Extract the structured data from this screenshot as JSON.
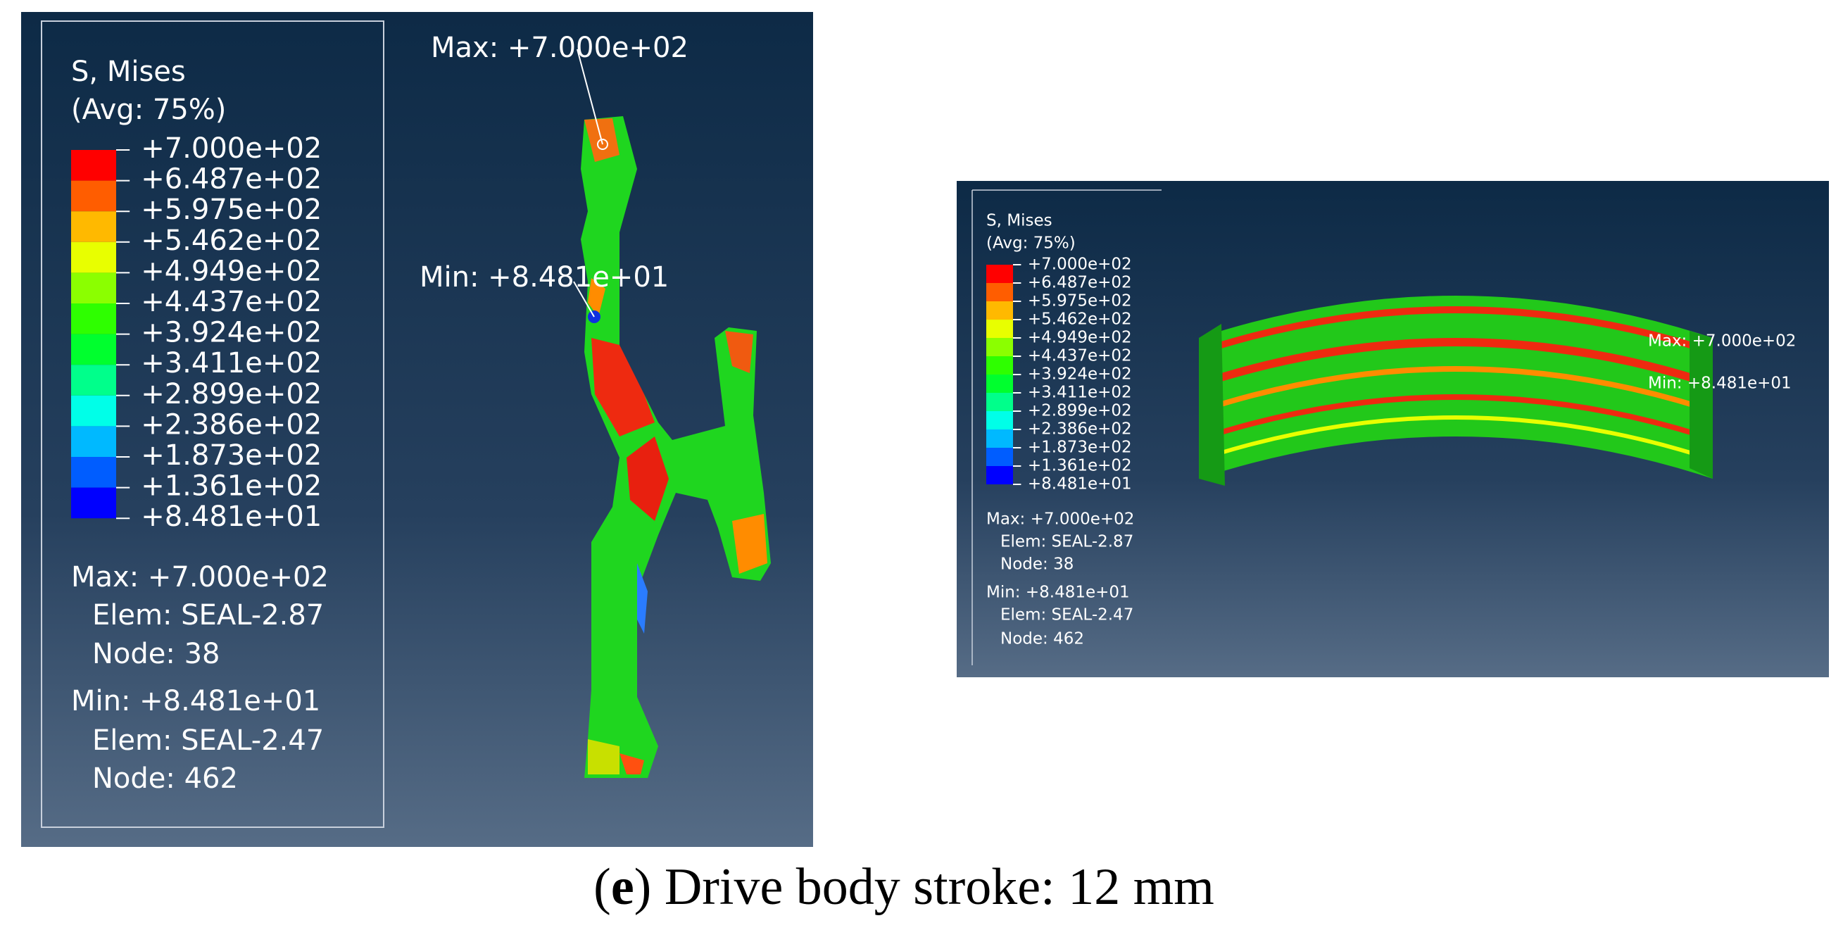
{
  "left_panel": {
    "legend": {
      "title": "S, Mises",
      "subtitle": "(Avg: 75%)",
      "labels": [
        "+7.000e+02",
        "+6.487e+02",
        "+5.975e+02",
        "+5.462e+02",
        "+4.949e+02",
        "+4.437e+02",
        "+3.924e+02",
        "+3.411e+02",
        "+2.899e+02",
        "+2.386e+02",
        "+1.873e+02",
        "+1.361e+02",
        "+8.481e+01"
      ]
    },
    "info": {
      "max": "Max: +7.000e+02",
      "max_elem": "Elem: SEAL-2.87",
      "max_node": "Node: 38",
      "min": "Min: +8.481e+01",
      "min_elem": "Elem: SEAL-2.47",
      "min_node": "Node: 462"
    },
    "annotations": {
      "max": "Max: +7.000e+02",
      "min": "Min: +8.481e+01"
    }
  },
  "right_panel": {
    "legend": {
      "title": "S, Mises",
      "subtitle": "(Avg: 75%)",
      "labels": [
        "+7.000e+02",
        "+6.487e+02",
        "+5.975e+02",
        "+5.462e+02",
        "+4.949e+02",
        "+4.437e+02",
        "+3.924e+02",
        "+3.411e+02",
        "+2.899e+02",
        "+2.386e+02",
        "+1.873e+02",
        "+1.361e+02",
        "+8.481e+01"
      ]
    },
    "info": {
      "max": "Max: +7.000e+02",
      "max_elem": "Elem: SEAL-2.87",
      "max_node": "Node: 38",
      "min": "Min: +8.481e+01",
      "min_elem": "Elem: SEAL-2.47",
      "min_node": "Node: 462"
    },
    "annotations": {
      "max": "Max: +7.000e+02",
      "min": "Min: +8.481e+01"
    }
  },
  "caption": {
    "open": "(",
    "label": "e",
    "rest": ") Drive body stroke: 12 mm"
  }
}
